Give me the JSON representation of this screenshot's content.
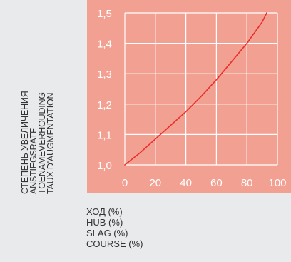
{
  "chart_data": {
    "type": "line",
    "x": [
      0,
      10,
      20,
      30,
      40,
      50,
      60,
      70,
      80,
      90,
      93
    ],
    "series": [
      {
        "values": [
          1.0,
          1.04,
          1.085,
          1.13,
          1.175,
          1.225,
          1.28,
          1.34,
          1.4,
          1.47,
          1.5
        ]
      }
    ],
    "xlim": [
      0,
      100
    ],
    "ylim": [
      1.0,
      1.5
    ],
    "xticks": [
      "0",
      "20",
      "40",
      "60",
      "80",
      "100"
    ],
    "yticks": [
      "1,0",
      "1,1",
      "1,2",
      "1,3",
      "1,4",
      "1,5"
    ],
    "ylabel": [
      "СТЕПЕНЬ УВЕЛИЧЕНИЯ",
      "ANSTIEGSRATE",
      "TOENAMEVERHOUDING",
      "TAUX D'AUGMENTATION"
    ],
    "xlabel": [
      "ХОД (%)",
      "HUB (%)",
      "SLAG (%)",
      "COURSE (%)"
    ],
    "grid": true,
    "colors": {
      "panel": "#f2a092",
      "grid": "#ffffff",
      "line": "#e8302c",
      "tick_text": "#ffffff",
      "background": "#e9eaec"
    }
  }
}
